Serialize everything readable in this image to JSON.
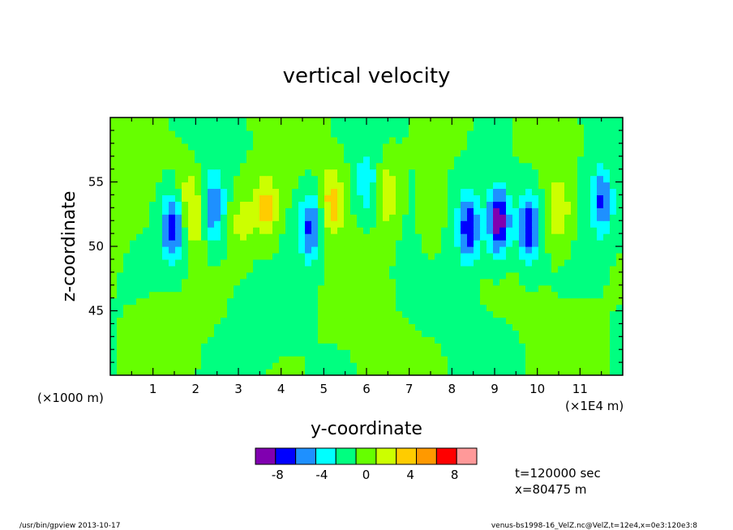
{
  "chart_data": {
    "type": "heatmap",
    "title": "vertical velocity",
    "xlabel": "y-coordinate",
    "ylabel": "z-coordinate",
    "x_unit_left": "(×1000 m)",
    "x_unit_right": "(×1E4 m)",
    "xlim": [
      0,
      120000
    ],
    "ylim": [
      40000,
      60000
    ],
    "x_ticks": [
      10000,
      20000,
      30000,
      40000,
      50000,
      60000,
      70000,
      80000,
      90000,
      100000,
      110000
    ],
    "x_tick_labels": [
      "1",
      "2",
      "3",
      "4",
      "5",
      "6",
      "7",
      "8",
      "9",
      "10",
      "11"
    ],
    "y_ticks": [
      45000,
      50000,
      55000
    ],
    "y_tick_labels": [
      "45",
      "50",
      "55"
    ],
    "colorbar": {
      "bins": [
        -10,
        -8,
        -6,
        -4,
        -2,
        0,
        2,
        4,
        6,
        8,
        10
      ],
      "colors": [
        "#8000b0",
        "#0000ff",
        "#1e90ff",
        "#00ffff",
        "#00ff80",
        "#66ff00",
        "#ccff00",
        "#ffcc00",
        "#ff9900",
        "#ff0000",
        "#ff9999"
      ],
      "tick_labels": [
        "-8",
        "-4",
        "0",
        "4",
        "8"
      ],
      "tick_values": [
        -8,
        -4,
        0,
        4,
        8
      ]
    },
    "features": [
      {
        "y": 1000,
        "z": 53000,
        "w": 0.3
      },
      {
        "y": 14500,
        "z": 51500,
        "w": -7.5
      },
      {
        "y": 17500,
        "z": 54500,
        "w": 2
      },
      {
        "y": 20000,
        "z": 52500,
        "w": 4
      },
      {
        "y": 24000,
        "z": 53000,
        "w": -6
      },
      {
        "y": 31000,
        "z": 52000,
        "w": 3.2
      },
      {
        "y": 36500,
        "z": 53000,
        "w": 5
      },
      {
        "y": 47000,
        "z": 51500,
        "w": -7
      },
      {
        "y": 52000,
        "z": 53500,
        "w": 5
      },
      {
        "y": 60000,
        "z": 55000,
        "w": -3.5
      },
      {
        "y": 65000,
        "z": 54000,
        "w": 4
      },
      {
        "y": 75000,
        "z": 52000,
        "w": 2
      },
      {
        "y": 84000,
        "z": 51500,
        "w": -8
      },
      {
        "y": 91000,
        "z": 52000,
        "w": -10
      },
      {
        "y": 98000,
        "z": 51500,
        "w": -8
      },
      {
        "y": 105000,
        "z": 53000,
        "w": 4
      },
      {
        "y": 115000,
        "z": 53500,
        "w": -6
      },
      {
        "y": 60000,
        "z": 44000,
        "w": 1.2
      }
    ],
    "annotations": [
      "t=120000 sec",
      "x=80475 m"
    ]
  },
  "footer": {
    "left": "/usr/bin/gpview  2013-10-17",
    "right": "venus-bs1998-16_VelZ.nc@VelZ,t=12e4,x=0e3:120e3:8"
  }
}
